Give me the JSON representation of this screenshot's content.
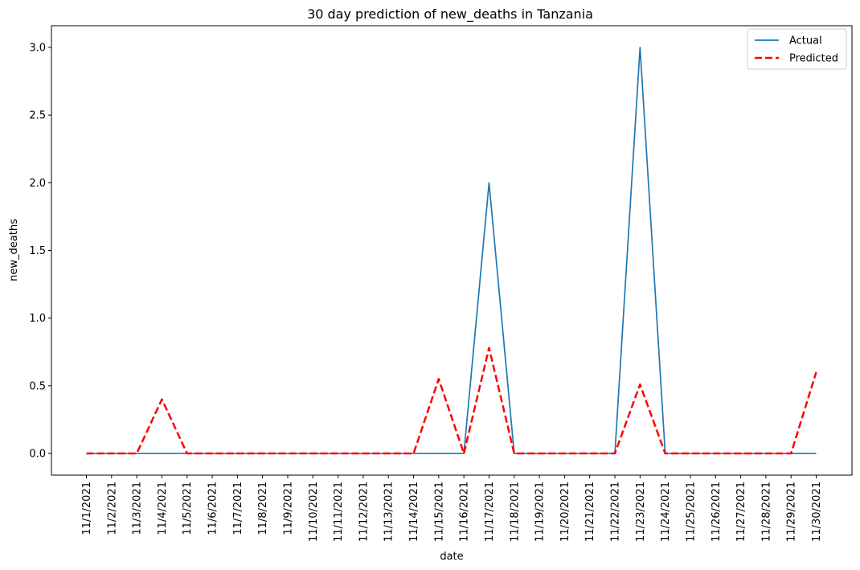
{
  "chart_data": {
    "type": "line",
    "title": "30 day prediction of new_deaths in Tanzania",
    "xlabel": "date",
    "ylabel": "new_deaths",
    "x": [
      "11/1/2021",
      "11/2/2021",
      "11/3/2021",
      "11/4/2021",
      "11/5/2021",
      "11/6/2021",
      "11/7/2021",
      "11/8/2021",
      "11/9/2021",
      "11/10/2021",
      "11/11/2021",
      "11/12/2021",
      "11/13/2021",
      "11/14/2021",
      "11/15/2021",
      "11/16/2021",
      "11/17/2021",
      "11/18/2021",
      "11/19/2021",
      "11/20/2021",
      "11/21/2021",
      "11/22/2021",
      "11/23/2021",
      "11/24/2021",
      "11/25/2021",
      "11/26/2021",
      "11/27/2021",
      "11/28/2021",
      "11/29/2021",
      "11/30/2021"
    ],
    "ylim": [
      -0.16,
      3.16
    ],
    "yticks": [
      0.0,
      0.5,
      1.0,
      1.5,
      2.0,
      2.5,
      3.0
    ],
    "ytick_labels": [
      "0.0",
      "0.5",
      "1.0",
      "1.5",
      "2.0",
      "2.5",
      "3.0"
    ],
    "grid": false,
    "legend_position": "top-right",
    "series": [
      {
        "name": "Actual",
        "color": "#1f77b4",
        "style": "solid",
        "values": [
          0,
          0,
          0,
          0,
          0,
          0,
          0,
          0,
          0,
          0,
          0,
          0,
          0,
          0,
          0,
          0,
          2,
          0,
          0,
          0,
          0,
          0,
          3,
          0,
          0,
          0,
          0,
          0,
          0,
          0
        ]
      },
      {
        "name": "Predicted",
        "color": "#ff0000",
        "style": "dashed",
        "values": [
          0,
          0,
          0,
          0.4,
          0,
          0,
          0,
          0,
          0,
          0,
          0,
          0,
          0,
          0,
          0.55,
          0,
          0.78,
          0,
          0,
          0,
          0,
          0,
          0.51,
          0,
          0,
          0,
          0,
          0,
          0,
          0.6
        ]
      }
    ]
  }
}
